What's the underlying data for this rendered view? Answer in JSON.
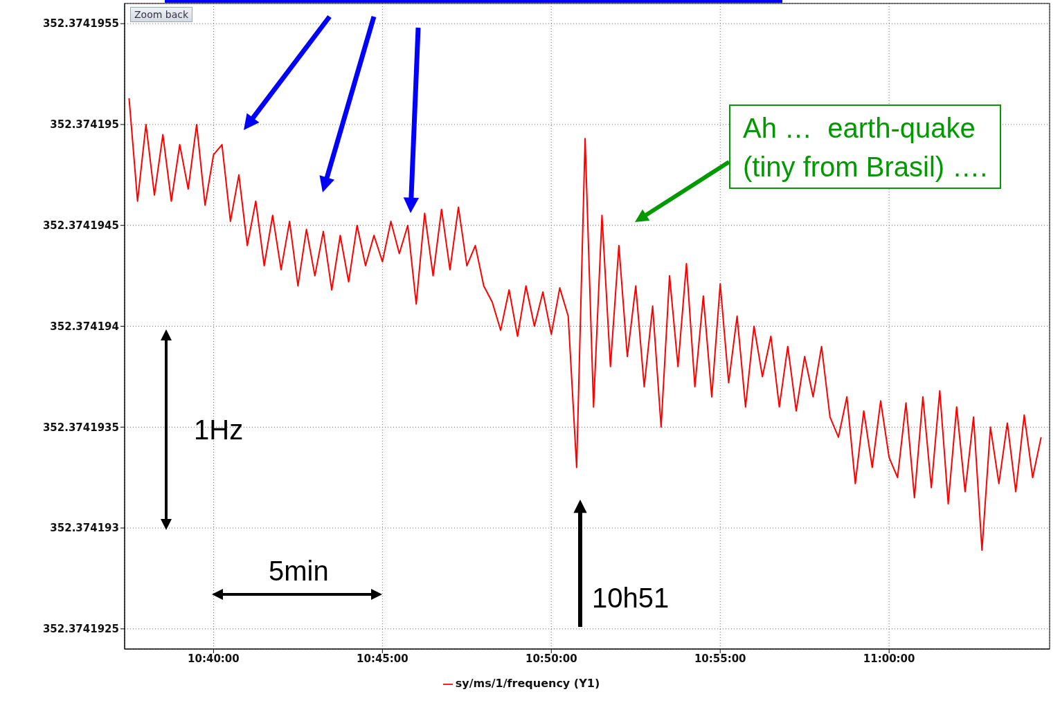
{
  "chart_data": {
    "type": "line",
    "x": [
      10.625,
      10.62917,
      10.63333,
      10.6375,
      10.64167,
      10.64583,
      10.65,
      10.65417,
      10.65833,
      10.6625,
      10.66667,
      10.67083,
      10.675,
      10.67917,
      10.68333,
      10.6875,
      10.69167,
      10.69583,
      10.7,
      10.70417,
      10.70833,
      10.7125,
      10.71667,
      10.72083,
      10.725,
      10.72917,
      10.73333,
      10.7375,
      10.74167,
      10.74583,
      10.75,
      10.75417,
      10.75833,
      10.7625,
      10.76667,
      10.77083,
      10.775,
      10.77917,
      10.78333,
      10.7875,
      10.79167,
      10.79583,
      10.8,
      10.80417,
      10.80833,
      10.8125,
      10.81667,
      10.82083,
      10.825,
      10.82917,
      10.83333,
      10.8375,
      10.84167,
      10.84583,
      10.85,
      10.85417,
      10.85833,
      10.8625,
      10.86667,
      10.87083,
      10.875,
      10.87917,
      10.88333,
      10.8875,
      10.89167,
      10.89583,
      10.9,
      10.90417,
      10.90833,
      10.9125,
      10.91667,
      10.92083,
      10.925,
      10.92917,
      10.93333,
      10.9375,
      10.94167,
      10.94583,
      10.95,
      10.95417,
      10.95833,
      10.9625,
      10.96667,
      10.97083,
      10.975,
      10.97917,
      10.98333,
      10.9875,
      10.99167,
      10.99583,
      11.0,
      11.00417,
      11.00833,
      11.0125,
      11.01667,
      11.02083,
      11.025,
      11.02917,
      11.03333,
      11.0375,
      11.04167,
      11.04583,
      11.05,
      11.05417,
      11.05833,
      11.0625,
      11.06667,
      11.07083,
      11.075
    ],
    "series": [
      {
        "name": "sy/ms/1/frequency (Y1)",
        "color": "#ff0000",
        "values": [
          352.37419513,
          352.37419462,
          352.374195,
          352.37419465,
          352.37419495,
          352.37419462,
          352.3741949,
          352.37419468,
          352.374195,
          352.3741946,
          352.37419485,
          352.3741949,
          352.37419452,
          352.37419475,
          352.3741944,
          352.37419462,
          352.3741943,
          352.37419455,
          352.37419428,
          352.37419452,
          352.3741942,
          352.37419448,
          352.37419425,
          352.37419447,
          352.37419418,
          352.37419445,
          352.37419422,
          352.3741945,
          352.3741943,
          352.37419445,
          352.37419432,
          352.37419452,
          352.37419436,
          352.3741945,
          352.37419411,
          352.37419456,
          352.37419425,
          352.37419458,
          352.37419428,
          352.37419459,
          352.3741943,
          352.3741944,
          352.3741942,
          352.37419412,
          352.37419398,
          352.37419418,
          352.37419395,
          352.3741942,
          352.374194,
          352.37419417,
          352.37419396,
          352.37419419,
          352.37419405,
          352.3741933,
          352.37419493,
          352.3741936,
          352.37419455,
          352.3741938,
          352.3741944,
          352.37419385,
          352.3741942,
          352.3741937,
          352.3741941,
          352.3741935,
          352.37419425,
          352.3741938,
          352.37419431,
          352.3741937,
          352.37419415,
          352.37419365,
          352.37419421,
          352.37419372,
          352.37419405,
          352.3741936,
          352.374194,
          352.37419375,
          352.37419395,
          352.3741936,
          352.3741939,
          352.37419358,
          352.37419385,
          352.37419365,
          352.3741939,
          352.37419355,
          352.37419345,
          352.37419365,
          352.37419322,
          352.37419358,
          352.3741933,
          352.37419363,
          352.37419335,
          352.37419325,
          352.37419362,
          352.37419315,
          352.37419365,
          352.3741932,
          352.37419368,
          352.37419312,
          352.3741936,
          352.37419318,
          352.37419355,
          352.37419289,
          352.3741935,
          352.37419322,
          352.37419352,
          352.37419318,
          352.37419356,
          352.37419325,
          352.37419345
        ]
      }
    ],
    "xlim": [
      10.6228,
      11.0792
    ],
    "ylim": [
      352.3741924,
      352.3741956
    ],
    "xticks": [
      {
        "value": 10.66667,
        "label": "10:40:00"
      },
      {
        "value": 10.75,
        "label": "10:45:00"
      },
      {
        "value": 10.83333,
        "label": "10:50:00"
      },
      {
        "value": 10.91667,
        "label": "10:55:00"
      },
      {
        "value": 11.0,
        "label": "11:00:00"
      }
    ],
    "yticks": [
      352.3741925,
      352.374193,
      352.3741935,
      352.374194,
      352.3741945,
      352.374195,
      352.3741955
    ],
    "grid": true,
    "legend": "bottom",
    "marker": "none",
    "line_style": "solid",
    "annotations": [
      "Zoom back",
      "1Hz",
      "5min",
      "10h51",
      "Ah …  earth-quake\n(tiny from Brasil) …."
    ]
  }
}
